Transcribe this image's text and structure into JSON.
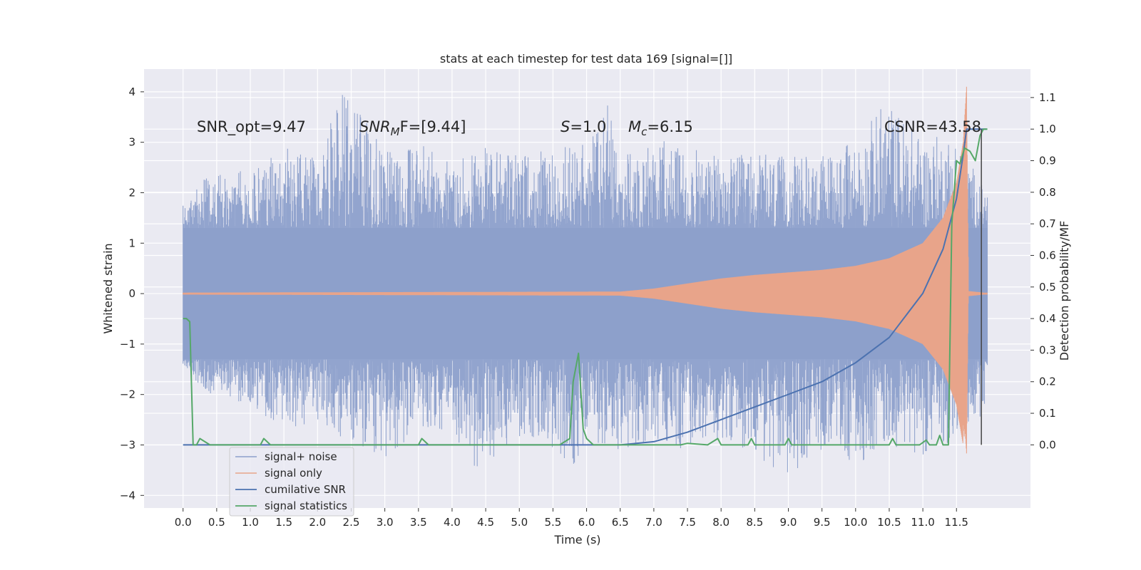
{
  "chart_data": {
    "type": "line",
    "title": "stats at each timestep for test data 169 [signal=[]]",
    "xlabel": "Time (s)",
    "ylabel_left": "Whitened strain",
    "ylabel_right": "Detection probability/MF",
    "xlim": [
      -0.58,
      12.6
    ],
    "ylim_left": [
      -4.25,
      4.45
    ],
    "ylim_right": [
      -0.2,
      1.19
    ],
    "x_ticks": [
      "0.0",
      "0.5",
      "1.0",
      "1.5",
      "2.0",
      "2.5",
      "3.0",
      "3.5",
      "4.0",
      "4.5",
      "5.0",
      "5.5",
      "6.0",
      "6.5",
      "7.0",
      "7.5",
      "8.0",
      "8.5",
      "9.0",
      "9.5",
      "10.0",
      "10.5",
      "11.0",
      "11.5"
    ],
    "y_ticks_left": [
      "4",
      "3",
      "2",
      "1",
      "0",
      "−1",
      "−2",
      "−3",
      "−4"
    ],
    "y_ticks_right": [
      "1.1",
      "1.0",
      "0.9",
      "0.8",
      "0.7",
      "0.6",
      "0.5",
      "0.4",
      "0.3",
      "0.2",
      "0.1",
      "0.0"
    ],
    "grid": true,
    "legend_position": "lower-left",
    "annotations": {
      "snr_opt": "SNR_opt=9.47",
      "snr_mf_main": "SNR",
      "snr_mf_sub": "M",
      "snr_mf_rest": "F=[9.44]",
      "s_main": "S",
      "s_rest": "=1.0",
      "mc_main": "M",
      "mc_sub": "c",
      "mc_rest": "=6.15",
      "csnr": "CSNR=43.58"
    },
    "series": [
      {
        "name": "signal+ noise",
        "axis": "left",
        "color": "#8da0cb",
        "envelope_upper": [
          [
            0.0,
            1.9
          ],
          [
            0.5,
            2.5
          ],
          [
            1.0,
            2.4
          ],
          [
            1.5,
            2.9
          ],
          [
            2.0,
            2.7
          ],
          [
            2.4,
            4.1
          ],
          [
            3.0,
            2.8
          ],
          [
            3.5,
            3.0
          ],
          [
            4.0,
            2.6
          ],
          [
            4.5,
            2.9
          ],
          [
            5.0,
            2.8
          ],
          [
            5.5,
            2.9
          ],
          [
            6.0,
            3.0
          ],
          [
            6.3,
            3.9
          ],
          [
            6.5,
            2.7
          ],
          [
            7.0,
            3.1
          ],
          [
            7.5,
            2.9
          ],
          [
            8.0,
            2.7
          ],
          [
            8.5,
            2.8
          ],
          [
            9.0,
            2.7
          ],
          [
            9.5,
            2.8
          ],
          [
            10.0,
            3.0
          ],
          [
            10.45,
            3.9
          ],
          [
            11.0,
            3.1
          ],
          [
            11.5,
            3.2
          ],
          [
            11.9,
            2.1
          ]
        ],
        "envelope_lower": [
          [
            0.0,
            -1.5
          ],
          [
            0.5,
            -2.1
          ],
          [
            1.0,
            -2.3
          ],
          [
            1.5,
            -2.6
          ],
          [
            2.0,
            -2.7
          ],
          [
            2.5,
            -2.9
          ],
          [
            3.0,
            -3.3
          ],
          [
            3.5,
            -2.7
          ],
          [
            4.0,
            -2.7
          ],
          [
            4.35,
            -3.6
          ],
          [
            5.0,
            -2.9
          ],
          [
            5.5,
            -3.1
          ],
          [
            5.8,
            -3.4
          ],
          [
            6.0,
            -3.0
          ],
          [
            6.5,
            -3.1
          ],
          [
            7.0,
            -3.0
          ],
          [
            7.5,
            -3.1
          ],
          [
            8.0,
            -3.0
          ],
          [
            8.5,
            -3.1
          ],
          [
            8.8,
            -3.8
          ],
          [
            9.5,
            -3.1
          ],
          [
            10.0,
            -3.4
          ],
          [
            10.5,
            -3.0
          ],
          [
            11.0,
            -3.2
          ],
          [
            11.5,
            -2.9
          ],
          [
            11.9,
            -2.4
          ]
        ]
      },
      {
        "name": "signal only",
        "axis": "left",
        "color": "#e8a48a",
        "envelope": [
          [
            0.0,
            0.02
          ],
          [
            6.5,
            0.04
          ],
          [
            7.0,
            0.1
          ],
          [
            7.5,
            0.2
          ],
          [
            8.0,
            0.3
          ],
          [
            8.5,
            0.37
          ],
          [
            9.0,
            0.42
          ],
          [
            9.5,
            0.47
          ],
          [
            10.0,
            0.55
          ],
          [
            10.5,
            0.7
          ],
          [
            11.0,
            1.0
          ],
          [
            11.3,
            1.5
          ],
          [
            11.5,
            2.2
          ],
          [
            11.6,
            3.0
          ],
          [
            11.65,
            4.1
          ],
          [
            11.68,
            0.05
          ],
          [
            11.9,
            0.02
          ]
        ]
      },
      {
        "name": "cumilative SNR",
        "axis": "right",
        "color": "#4c72b0",
        "points": [
          [
            0.0,
            0.0
          ],
          [
            6.5,
            0.0
          ],
          [
            7.0,
            0.01
          ],
          [
            7.5,
            0.04
          ],
          [
            8.0,
            0.08
          ],
          [
            8.5,
            0.12
          ],
          [
            9.0,
            0.16
          ],
          [
            9.5,
            0.2
          ],
          [
            10.0,
            0.26
          ],
          [
            10.5,
            0.34
          ],
          [
            11.0,
            0.48
          ],
          [
            11.3,
            0.62
          ],
          [
            11.5,
            0.78
          ],
          [
            11.6,
            0.92
          ],
          [
            11.65,
            1.0
          ],
          [
            11.95,
            1.0
          ]
        ]
      },
      {
        "name": "signal statistics",
        "axis": "right",
        "color": "#55a868",
        "points": [
          [
            0.0,
            0.4
          ],
          [
            0.05,
            0.4
          ],
          [
            0.1,
            0.39
          ],
          [
            0.15,
            0.0
          ],
          [
            0.2,
            0.0
          ],
          [
            0.25,
            0.02
          ],
          [
            0.4,
            0.0
          ],
          [
            1.0,
            0.0
          ],
          [
            1.15,
            0.0
          ],
          [
            1.2,
            0.02
          ],
          [
            1.3,
            0.0
          ],
          [
            3.5,
            0.0
          ],
          [
            3.55,
            0.02
          ],
          [
            3.65,
            0.0
          ],
          [
            5.6,
            0.0
          ],
          [
            5.75,
            0.02
          ],
          [
            5.8,
            0.2
          ],
          [
            5.88,
            0.29
          ],
          [
            5.95,
            0.05
          ],
          [
            6.0,
            0.02
          ],
          [
            6.1,
            0.0
          ],
          [
            7.4,
            0.0
          ],
          [
            7.5,
            0.005
          ],
          [
            7.8,
            0.0
          ],
          [
            7.95,
            0.02
          ],
          [
            8.0,
            0.0
          ],
          [
            8.4,
            0.0
          ],
          [
            8.45,
            0.02
          ],
          [
            8.5,
            0.0
          ],
          [
            8.95,
            0.0
          ],
          [
            9.0,
            0.02
          ],
          [
            9.05,
            0.0
          ],
          [
            10.5,
            0.0
          ],
          [
            10.55,
            0.02
          ],
          [
            10.6,
            0.0
          ],
          [
            10.95,
            0.0
          ],
          [
            11.05,
            0.015
          ],
          [
            11.1,
            0.0
          ],
          [
            11.2,
            0.0
          ],
          [
            11.25,
            0.03
          ],
          [
            11.3,
            0.0
          ],
          [
            11.38,
            0.0
          ],
          [
            11.43,
            0.7
          ],
          [
            11.5,
            0.9
          ],
          [
            11.55,
            0.89
          ],
          [
            11.62,
            0.94
          ],
          [
            11.7,
            0.93
          ],
          [
            11.78,
            0.9
          ],
          [
            11.85,
            0.98
          ],
          [
            11.9,
            1.0
          ],
          [
            11.96,
            1.0
          ]
        ]
      }
    ]
  }
}
